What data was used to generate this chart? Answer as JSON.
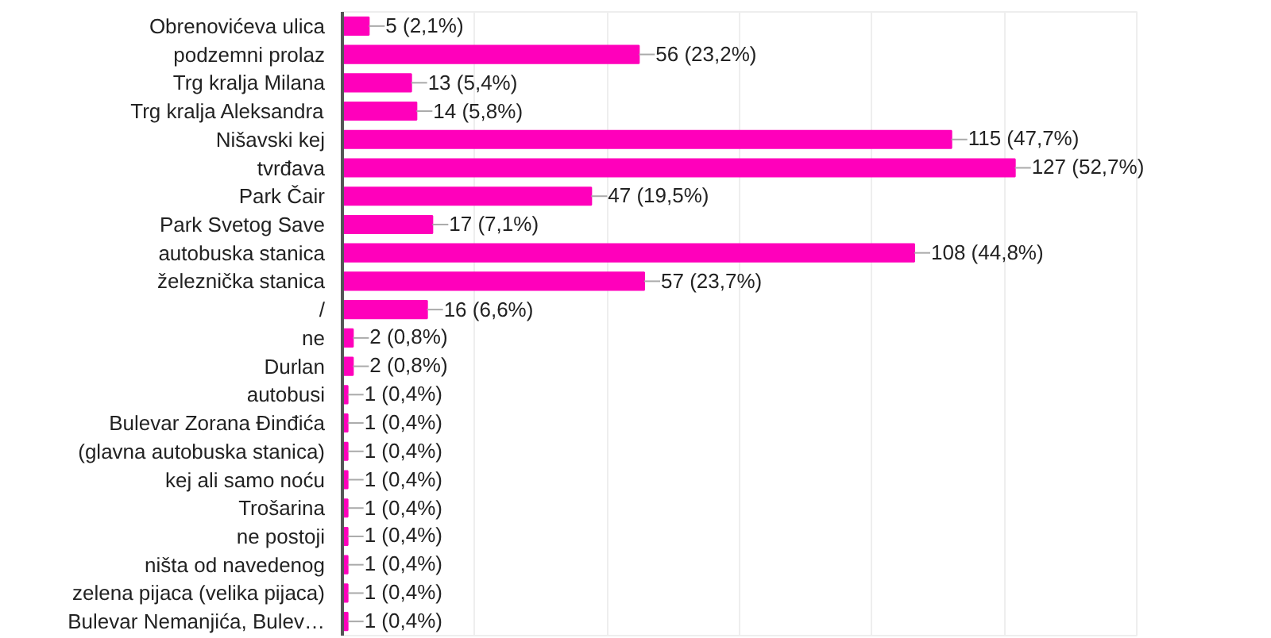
{
  "chart_data": {
    "type": "bar",
    "orientation": "horizontal",
    "categories": [
      "Obrenovićeva ulica",
      "podzemni prolaz",
      "Trg kralja Milana",
      "Trg kralja Aleksandra",
      "Nišavski kej",
      "tvrđava",
      "Park Čair",
      "Park Svetog Save",
      "autobuska stanica",
      "železnička stanica",
      "/",
      "ne",
      "Durlan",
      "autobusi",
      "Bulevar Zorana Đinđića",
      "(glavna autobuska stanica)",
      "kej ali samo noću",
      "Trošarina",
      "ne postoji",
      "ništa od navedenog",
      "zelena pijaca (velika pijaca)",
      "Bulevar Nemanjića, Bulev…"
    ],
    "values": [
      5,
      56,
      13,
      14,
      115,
      127,
      47,
      17,
      108,
      57,
      16,
      2,
      2,
      1,
      1,
      1,
      1,
      1,
      1,
      1,
      1,
      1
    ],
    "value_labels": [
      "5 (2,1%)",
      "56 (23,2%)",
      "13 (5,4%)",
      "14 (5,8%)",
      "115 (47,7%)",
      "127 (52,7%)",
      "47 (19,5%)",
      "17 (7,1%)",
      "108 (44,8%)",
      "57 (23,7%)",
      "16 (6,6%)",
      "2 (0,8%)",
      "2 (0,8%)",
      "1 (0,4%)",
      "1 (0,4%)",
      "1 (0,4%)",
      "1 (0,4%)",
      "1 (0,4%)",
      "1 (0,4%)",
      "1 (0,4%)",
      "1 (0,4%)",
      "1 (0,4%)"
    ],
    "color": "#ff00bb",
    "xlim": [
      0,
      150
    ],
    "xticks": [
      {
        "value": 0,
        "label": null
      },
      {
        "value": 25,
        "label": null
      },
      {
        "value": 50,
        "label": null
      },
      {
        "value": 75,
        "label": null
      },
      {
        "value": 100,
        "label": null
      },
      {
        "value": 125,
        "label": null
      },
      {
        "value": 150,
        "label": null
      }
    ],
    "tick_labels": "y",
    "grid": "x"
  }
}
